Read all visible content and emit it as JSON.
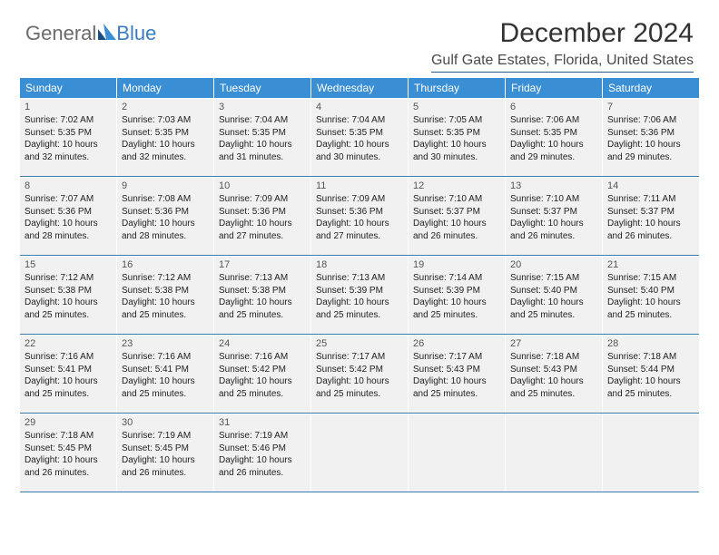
{
  "logo": {
    "part1": "General",
    "part2": "Blue"
  },
  "title": "December 2024",
  "location": "Gulf Gate Estates, Florida, United States",
  "headers": [
    "Sunday",
    "Monday",
    "Tuesday",
    "Wednesday",
    "Thursday",
    "Friday",
    "Saturday"
  ],
  "header_bg": "#3a8fd4",
  "cell_bg": "#f1f1f1",
  "divider_color": "#3a7cab",
  "accent_color": "#2a5d8f",
  "days": [
    {
      "n": "1",
      "sr": "7:02 AM",
      "ss": "5:35 PM",
      "dl": "10 hours and 32 minutes."
    },
    {
      "n": "2",
      "sr": "7:03 AM",
      "ss": "5:35 PM",
      "dl": "10 hours and 32 minutes."
    },
    {
      "n": "3",
      "sr": "7:04 AM",
      "ss": "5:35 PM",
      "dl": "10 hours and 31 minutes."
    },
    {
      "n": "4",
      "sr": "7:04 AM",
      "ss": "5:35 PM",
      "dl": "10 hours and 30 minutes."
    },
    {
      "n": "5",
      "sr": "7:05 AM",
      "ss": "5:35 PM",
      "dl": "10 hours and 30 minutes."
    },
    {
      "n": "6",
      "sr": "7:06 AM",
      "ss": "5:35 PM",
      "dl": "10 hours and 29 minutes."
    },
    {
      "n": "7",
      "sr": "7:06 AM",
      "ss": "5:36 PM",
      "dl": "10 hours and 29 minutes."
    },
    {
      "n": "8",
      "sr": "7:07 AM",
      "ss": "5:36 PM",
      "dl": "10 hours and 28 minutes."
    },
    {
      "n": "9",
      "sr": "7:08 AM",
      "ss": "5:36 PM",
      "dl": "10 hours and 28 minutes."
    },
    {
      "n": "10",
      "sr": "7:09 AM",
      "ss": "5:36 PM",
      "dl": "10 hours and 27 minutes."
    },
    {
      "n": "11",
      "sr": "7:09 AM",
      "ss": "5:36 PM",
      "dl": "10 hours and 27 minutes."
    },
    {
      "n": "12",
      "sr": "7:10 AM",
      "ss": "5:37 PM",
      "dl": "10 hours and 26 minutes."
    },
    {
      "n": "13",
      "sr": "7:10 AM",
      "ss": "5:37 PM",
      "dl": "10 hours and 26 minutes."
    },
    {
      "n": "14",
      "sr": "7:11 AM",
      "ss": "5:37 PM",
      "dl": "10 hours and 26 minutes."
    },
    {
      "n": "15",
      "sr": "7:12 AM",
      "ss": "5:38 PM",
      "dl": "10 hours and 25 minutes."
    },
    {
      "n": "16",
      "sr": "7:12 AM",
      "ss": "5:38 PM",
      "dl": "10 hours and 25 minutes."
    },
    {
      "n": "17",
      "sr": "7:13 AM",
      "ss": "5:38 PM",
      "dl": "10 hours and 25 minutes."
    },
    {
      "n": "18",
      "sr": "7:13 AM",
      "ss": "5:39 PM",
      "dl": "10 hours and 25 minutes."
    },
    {
      "n": "19",
      "sr": "7:14 AM",
      "ss": "5:39 PM",
      "dl": "10 hours and 25 minutes."
    },
    {
      "n": "20",
      "sr": "7:15 AM",
      "ss": "5:40 PM",
      "dl": "10 hours and 25 minutes."
    },
    {
      "n": "21",
      "sr": "7:15 AM",
      "ss": "5:40 PM",
      "dl": "10 hours and 25 minutes."
    },
    {
      "n": "22",
      "sr": "7:16 AM",
      "ss": "5:41 PM",
      "dl": "10 hours and 25 minutes."
    },
    {
      "n": "23",
      "sr": "7:16 AM",
      "ss": "5:41 PM",
      "dl": "10 hours and 25 minutes."
    },
    {
      "n": "24",
      "sr": "7:16 AM",
      "ss": "5:42 PM",
      "dl": "10 hours and 25 minutes."
    },
    {
      "n": "25",
      "sr": "7:17 AM",
      "ss": "5:42 PM",
      "dl": "10 hours and 25 minutes."
    },
    {
      "n": "26",
      "sr": "7:17 AM",
      "ss": "5:43 PM",
      "dl": "10 hours and 25 minutes."
    },
    {
      "n": "27",
      "sr": "7:18 AM",
      "ss": "5:43 PM",
      "dl": "10 hours and 25 minutes."
    },
    {
      "n": "28",
      "sr": "7:18 AM",
      "ss": "5:44 PM",
      "dl": "10 hours and 25 minutes."
    },
    {
      "n": "29",
      "sr": "7:18 AM",
      "ss": "5:45 PM",
      "dl": "10 hours and 26 minutes."
    },
    {
      "n": "30",
      "sr": "7:19 AM",
      "ss": "5:45 PM",
      "dl": "10 hours and 26 minutes."
    },
    {
      "n": "31",
      "sr": "7:19 AM",
      "ss": "5:46 PM",
      "dl": "10 hours and 26 minutes."
    }
  ],
  "labels": {
    "sunrise": "Sunrise: ",
    "sunset": "Sunset: ",
    "daylight": "Daylight: "
  },
  "start_col": 0,
  "total_cells": 35
}
